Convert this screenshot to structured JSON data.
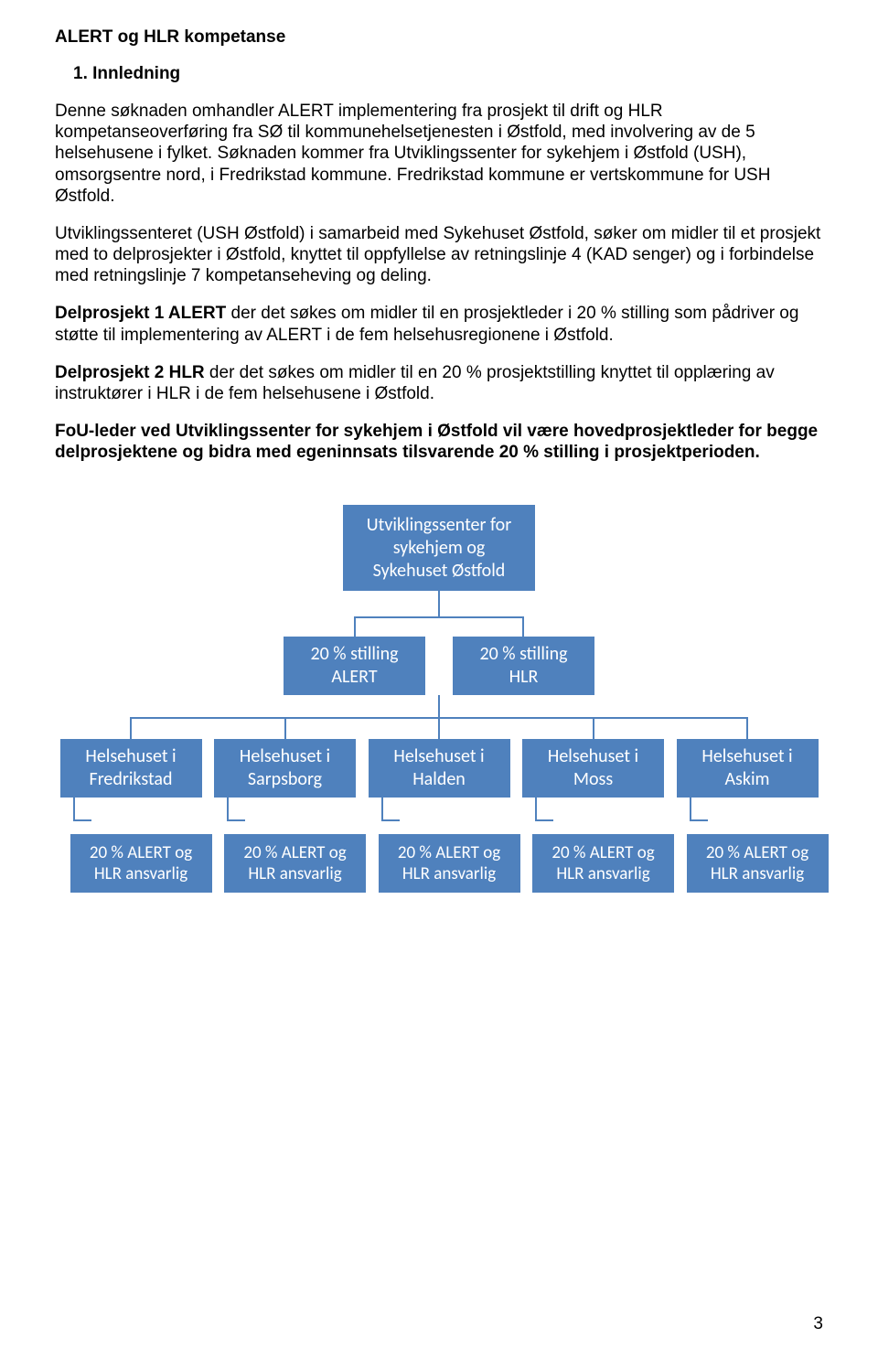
{
  "page_number": "3",
  "title": "ALERT og HLR kompetanse",
  "section_heading": "1. Innledning",
  "paragraphs": {
    "p1": "Denne søknaden omhandler ALERT implementering fra prosjekt til drift og HLR kompetanseoverføring fra SØ til kommunehelsetjenesten i Østfold, med involvering av de 5 helsehusene i fylket. Søknaden kommer fra Utviklingssenter for sykehjem i Østfold (USH), omsorgsentre nord, i Fredrikstad kommune. Fredrikstad kommune er vertskommune for USH Østfold.",
    "p2": "Utviklingssenteret (USH Østfold) i samarbeid med Sykehuset Østfold, søker om midler til et prosjekt med to delprosjekter i Østfold, knyttet til oppfyllelse av retningslinje 4 (KAD senger) og i forbindelse med retningslinje 7 kompetanseheving og deling.",
    "p3_bold": "Delprosjekt 1 ALERT",
    "p3_rest": "  der det søkes om midler til en prosjektleder i 20 % stilling som pådriver og støtte til  implementering av ALERT i de fem helsehusregionene i Østfold.",
    "p4_bold": "Delprosjekt 2 HLR",
    "p4_rest": "  der det søkes om midler til en 20 % prosjektstilling knyttet til opplæring av instruktører i HLR i de fem helsehusene i Østfold.",
    "p5": "FoU-leder ved Utviklingssenter for sykehjem i Østfold vil være hovedprosjektleder for begge delprosjektene og bidra med egeninnsats tilsvarende 20 % stilling i prosjektperioden."
  },
  "chart": {
    "type": "tree",
    "node_color": "#4f81bd",
    "text_color": "#ffffff",
    "connector_color": "#4f81bd",
    "font_family": "Calibri, Arial, sans-serif",
    "level1": {
      "line1": "Utviklingssenter for",
      "line2": "sykehjem og",
      "line3": "Sykehuset Østfold"
    },
    "level2": [
      {
        "line1": "20 % stilling",
        "line2": "ALERT"
      },
      {
        "line1": "20 % stilling",
        "line2": "HLR"
      }
    ],
    "level3": [
      {
        "line1": "Helsehuset i",
        "line2": "Fredrikstad"
      },
      {
        "line1": "Helsehuset i",
        "line2": "Sarpsborg"
      },
      {
        "line1": "Helsehuset i",
        "line2": "Halden"
      },
      {
        "line1": "Helsehuset i",
        "line2": "Moss"
      },
      {
        "line1": "Helsehuset i",
        "line2": "Askim"
      }
    ],
    "level4": [
      {
        "line1": "20 % ALERT og",
        "line2": "HLR ansvarlig"
      },
      {
        "line1": "20 % ALERT og",
        "line2": "HLR ansvarlig"
      },
      {
        "line1": "20 % ALERT og",
        "line2": "HLR ansvarlig"
      },
      {
        "line1": "20 % ALERT og",
        "line2": "HLR ansvarlig"
      },
      {
        "line1": "20 % ALERT og",
        "line2": "HLR ansvarlig"
      }
    ]
  }
}
